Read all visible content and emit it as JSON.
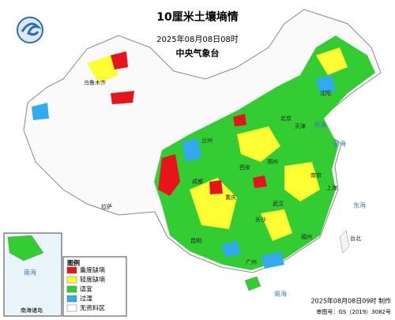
{
  "header": {
    "title": "10厘米土壤墒情",
    "datetime": "2025年08月08日08时",
    "issuer": "中央气象台"
  },
  "legend": {
    "title": "图例",
    "items": [
      {
        "label": "重度缺墒",
        "color": "#e8141c"
      },
      {
        "label": "轻度缺墒",
        "color": "#ffff33"
      },
      {
        "label": "适宜",
        "color": "#33cc33"
      },
      {
        "label": "过湿",
        "color": "#33aaee"
      },
      {
        "label": "无资料区",
        "color": "#ffffff"
      }
    ]
  },
  "places": [
    "北京",
    "天津",
    "上海",
    "武汉",
    "广州",
    "重庆",
    "成都",
    "西安",
    "郑州",
    "南京",
    "沈阳",
    "长沙",
    "昆明",
    "拉萨",
    "乌鲁木齐",
    "兰州",
    "福州",
    "台北",
    "黄海",
    "东海",
    "南海",
    "渤海"
  ],
  "inset": {
    "label": "南海诸岛",
    "sea": "南海"
  },
  "footer": {
    "made": "2025年08月08日09时 制作",
    "approval": "审图号：GS（2019）3082号"
  }
}
